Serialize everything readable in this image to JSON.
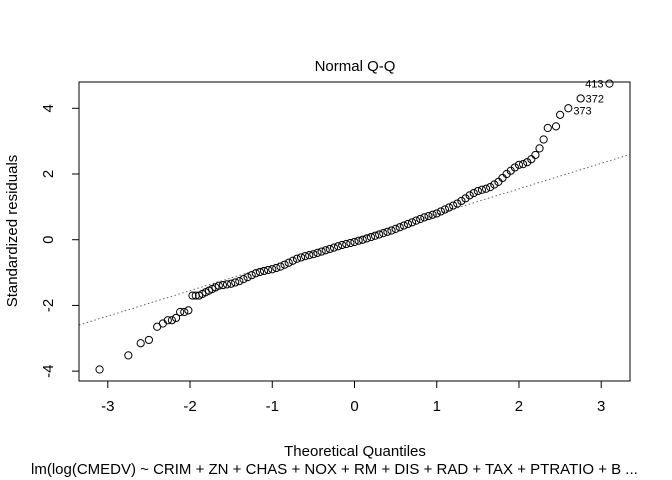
{
  "chart_data": {
    "type": "scatter",
    "title": "Normal Q-Q",
    "xlabel": "Theoretical Quantiles",
    "ylabel": "Standardized residuals",
    "caption": "lm(log(CMEDV) ~ CRIM + ZN + CHAS + NOX + RM + DIS + RAD + TAX + PTRATIO + B ...",
    "xlim": [
      -3.35,
      3.35
    ],
    "ylim": [
      -4.3,
      4.8
    ],
    "x_ticks": [
      -3,
      -2,
      -1,
      0,
      1,
      2,
      3
    ],
    "y_ticks": [
      -4,
      -2,
      0,
      2,
      4
    ],
    "reference_line": {
      "slope": 0.775,
      "intercept": 0.0
    },
    "annotations": [
      {
        "label": "413",
        "x": 3.1,
        "y": 4.75
      },
      {
        "label": "372",
        "x": 2.75,
        "y": 4.3
      },
      {
        "label": "373",
        "x": 2.6,
        "y": 4.0
      }
    ],
    "points": [
      [
        -3.1,
        -3.95
      ],
      [
        -2.75,
        -3.52
      ],
      [
        -2.6,
        -3.15
      ],
      [
        -2.5,
        -3.05
      ],
      [
        -2.4,
        -2.65
      ],
      [
        -2.33,
        -2.55
      ],
      [
        -2.27,
        -2.45
      ],
      [
        -2.22,
        -2.45
      ],
      [
        -2.17,
        -2.38
      ],
      [
        -2.12,
        -2.2
      ],
      [
        -2.07,
        -2.2
      ],
      [
        -2.02,
        -2.15
      ],
      [
        -1.97,
        -1.7
      ],
      [
        -1.93,
        -1.7
      ],
      [
        -1.89,
        -1.7
      ],
      [
        -1.85,
        -1.65
      ],
      [
        -1.81,
        -1.6
      ],
      [
        -1.77,
        -1.55
      ],
      [
        -1.73,
        -1.5
      ],
      [
        -1.69,
        -1.45
      ],
      [
        -1.65,
        -1.4
      ],
      [
        -1.6,
        -1.38
      ],
      [
        -1.55,
        -1.36
      ],
      [
        -1.5,
        -1.34
      ],
      [
        -1.45,
        -1.3
      ],
      [
        -1.4,
        -1.26
      ],
      [
        -1.35,
        -1.2
      ],
      [
        -1.3,
        -1.14
      ],
      [
        -1.25,
        -1.08
      ],
      [
        -1.2,
        -1.02
      ],
      [
        -1.15,
        -0.98
      ],
      [
        -1.1,
        -0.95
      ],
      [
        -1.05,
        -0.92
      ],
      [
        -1.0,
        -0.9
      ],
      [
        -0.95,
        -0.86
      ],
      [
        -0.9,
        -0.82
      ],
      [
        -0.85,
        -0.76
      ],
      [
        -0.8,
        -0.7
      ],
      [
        -0.75,
        -0.64
      ],
      [
        -0.7,
        -0.58
      ],
      [
        -0.65,
        -0.54
      ],
      [
        -0.6,
        -0.5
      ],
      [
        -0.55,
        -0.47
      ],
      [
        -0.5,
        -0.44
      ],
      [
        -0.45,
        -0.4
      ],
      [
        -0.4,
        -0.36
      ],
      [
        -0.35,
        -0.32
      ],
      [
        -0.3,
        -0.28
      ],
      [
        -0.25,
        -0.24
      ],
      [
        -0.2,
        -0.2
      ],
      [
        -0.15,
        -0.16
      ],
      [
        -0.1,
        -0.13
      ],
      [
        -0.05,
        -0.1
      ],
      [
        0.0,
        -0.07
      ],
      [
        0.05,
        -0.03
      ],
      [
        0.1,
        0.0
      ],
      [
        0.15,
        0.04
      ],
      [
        0.2,
        0.08
      ],
      [
        0.25,
        0.12
      ],
      [
        0.3,
        0.16
      ],
      [
        0.35,
        0.2
      ],
      [
        0.4,
        0.24
      ],
      [
        0.45,
        0.28
      ],
      [
        0.5,
        0.33
      ],
      [
        0.55,
        0.38
      ],
      [
        0.6,
        0.43
      ],
      [
        0.65,
        0.48
      ],
      [
        0.7,
        0.53
      ],
      [
        0.75,
        0.58
      ],
      [
        0.8,
        0.63
      ],
      [
        0.85,
        0.68
      ],
      [
        0.9,
        0.72
      ],
      [
        0.95,
        0.76
      ],
      [
        1.0,
        0.8
      ],
      [
        1.05,
        0.86
      ],
      [
        1.1,
        0.92
      ],
      [
        1.15,
        0.98
      ],
      [
        1.2,
        1.04
      ],
      [
        1.25,
        1.1
      ],
      [
        1.3,
        1.18
      ],
      [
        1.35,
        1.26
      ],
      [
        1.4,
        1.35
      ],
      [
        1.45,
        1.42
      ],
      [
        1.5,
        1.48
      ],
      [
        1.55,
        1.52
      ],
      [
        1.6,
        1.55
      ],
      [
        1.65,
        1.6
      ],
      [
        1.7,
        1.68
      ],
      [
        1.75,
        1.76
      ],
      [
        1.8,
        1.88
      ],
      [
        1.85,
        2.0
      ],
      [
        1.9,
        2.1
      ],
      [
        1.95,
        2.2
      ],
      [
        2.0,
        2.28
      ],
      [
        2.05,
        2.3
      ],
      [
        2.1,
        2.36
      ],
      [
        2.15,
        2.45
      ],
      [
        2.2,
        2.58
      ],
      [
        2.25,
        2.78
      ],
      [
        2.3,
        3.05
      ],
      [
        2.35,
        3.4
      ],
      [
        2.45,
        3.45
      ],
      [
        2.5,
        3.8
      ],
      [
        2.6,
        4.0
      ],
      [
        2.75,
        4.3
      ],
      [
        3.1,
        4.75
      ]
    ]
  }
}
